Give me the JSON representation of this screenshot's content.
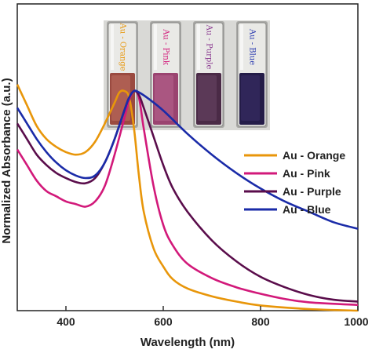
{
  "chart_data": {
    "type": "line",
    "title": "",
    "xlabel": "Wavelength (nm)",
    "ylabel": "Normalized Absorbance (a.u.)",
    "xlim": [
      300,
      1000
    ],
    "ylim": [
      0,
      1.18
    ],
    "x_ticks": [
      "400",
      "600",
      "800",
      "1000"
    ],
    "y_ticks": [],
    "grid": false,
    "legend_position": "right",
    "series": [
      {
        "name": "Au - Orange",
        "color": "#e8960a",
        "points": [
          [
            300,
            0.87
          ],
          [
            320,
            0.79
          ],
          [
            340,
            0.71
          ],
          [
            360,
            0.66
          ],
          [
            380,
            0.63
          ],
          [
            400,
            0.61
          ],
          [
            420,
            0.6
          ],
          [
            440,
            0.61
          ],
          [
            460,
            0.65
          ],
          [
            480,
            0.72
          ],
          [
            500,
            0.8
          ],
          [
            510,
            0.84
          ],
          [
            520,
            0.845
          ],
          [
            530,
            0.82
          ],
          [
            540,
            0.7
          ],
          [
            550,
            0.52
          ],
          [
            560,
            0.38
          ],
          [
            580,
            0.24
          ],
          [
            600,
            0.17
          ],
          [
            620,
            0.12
          ],
          [
            650,
            0.085
          ],
          [
            700,
            0.055
          ],
          [
            750,
            0.035
          ],
          [
            800,
            0.02
          ],
          [
            900,
            0.006
          ],
          [
            1000,
            0.0
          ]
        ]
      },
      {
        "name": "Au - Pink",
        "color": "#d2197a",
        "points": [
          [
            300,
            0.62
          ],
          [
            320,
            0.56
          ],
          [
            340,
            0.5
          ],
          [
            360,
            0.46
          ],
          [
            380,
            0.44
          ],
          [
            400,
            0.42
          ],
          [
            420,
            0.41
          ],
          [
            440,
            0.4
          ],
          [
            460,
            0.42
          ],
          [
            480,
            0.48
          ],
          [
            500,
            0.6
          ],
          [
            520,
            0.74
          ],
          [
            530,
            0.81
          ],
          [
            540,
            0.845
          ],
          [
            550,
            0.82
          ],
          [
            560,
            0.7
          ],
          [
            580,
            0.48
          ],
          [
            600,
            0.33
          ],
          [
            620,
            0.25
          ],
          [
            650,
            0.18
          ],
          [
            700,
            0.125
          ],
          [
            750,
            0.09
          ],
          [
            800,
            0.065
          ],
          [
            850,
            0.045
          ],
          [
            900,
            0.032
          ],
          [
            1000,
            0.022
          ]
        ]
      },
      {
        "name": "Au - Purple",
        "color": "#5a0d4b",
        "points": [
          [
            300,
            0.72
          ],
          [
            320,
            0.66
          ],
          [
            340,
            0.6
          ],
          [
            360,
            0.56
          ],
          [
            380,
            0.53
          ],
          [
            400,
            0.51
          ],
          [
            420,
            0.495
          ],
          [
            440,
            0.49
          ],
          [
            460,
            0.51
          ],
          [
            480,
            0.57
          ],
          [
            500,
            0.66
          ],
          [
            520,
            0.77
          ],
          [
            530,
            0.82
          ],
          [
            540,
            0.845
          ],
          [
            550,
            0.83
          ],
          [
            560,
            0.78
          ],
          [
            580,
            0.67
          ],
          [
            600,
            0.56
          ],
          [
            620,
            0.47
          ],
          [
            650,
            0.38
          ],
          [
            700,
            0.27
          ],
          [
            750,
            0.19
          ],
          [
            800,
            0.13
          ],
          [
            850,
            0.09
          ],
          [
            900,
            0.06
          ],
          [
            950,
            0.042
          ],
          [
            1000,
            0.035
          ]
        ]
      },
      {
        "name": "Au - Blue",
        "color": "#1a2ba8",
        "points": [
          [
            300,
            0.78
          ],
          [
            320,
            0.72
          ],
          [
            340,
            0.66
          ],
          [
            360,
            0.61
          ],
          [
            380,
            0.57
          ],
          [
            400,
            0.54
          ],
          [
            420,
            0.52
          ],
          [
            440,
            0.51
          ],
          [
            460,
            0.52
          ],
          [
            480,
            0.57
          ],
          [
            500,
            0.66
          ],
          [
            520,
            0.77
          ],
          [
            530,
            0.82
          ],
          [
            540,
            0.845
          ],
          [
            550,
            0.84
          ],
          [
            570,
            0.815
          ],
          [
            600,
            0.77
          ],
          [
            650,
            0.68
          ],
          [
            700,
            0.6
          ],
          [
            750,
            0.53
          ],
          [
            800,
            0.47
          ],
          [
            850,
            0.42
          ],
          [
            900,
            0.38
          ],
          [
            950,
            0.34
          ],
          [
            1000,
            0.315
          ]
        ]
      }
    ]
  },
  "photo": {
    "vials": [
      {
        "label": "Au - Orange",
        "label_color": "#e8960a",
        "liquid_color": "#9a4a40",
        "liquid_light": "#c07060"
      },
      {
        "label": "Au - Pink",
        "label_color": "#d2197a",
        "liquid_color": "#9a4470",
        "liquid_light": "#b86690"
      },
      {
        "label": "Au - Purple",
        "label_color": "#8a3a90",
        "liquid_color": "#4a2a46",
        "liquid_light": "#6a4566"
      },
      {
        "label": "Au - Blue",
        "label_color": "#2a3ab0",
        "liquid_color": "#241c48",
        "liquid_light": "#3a3068"
      }
    ]
  }
}
